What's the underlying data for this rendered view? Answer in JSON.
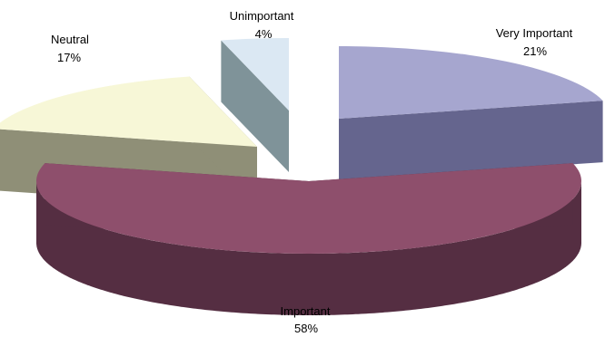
{
  "chart_data": {
    "type": "pie",
    "style": "3d-exploded",
    "slices": [
      {
        "name": "Very Important",
        "value": 21,
        "label": "21%",
        "top_color": "#a6a6cf",
        "side_color": "#65658e"
      },
      {
        "name": "Important",
        "value": 58,
        "label": "58%",
        "top_color": "#8e4f6c",
        "side_color": "#552e42"
      },
      {
        "name": "Neutral",
        "value": 17,
        "label": "17%",
        "top_color": "#f7f7d7",
        "side_color": "#8f8f77"
      },
      {
        "name": "Unimportant",
        "value": 4,
        "label": "4%",
        "top_color": "#dbe8f3",
        "side_color": "#7f9399"
      }
    ],
    "legend": "none",
    "title": ""
  }
}
